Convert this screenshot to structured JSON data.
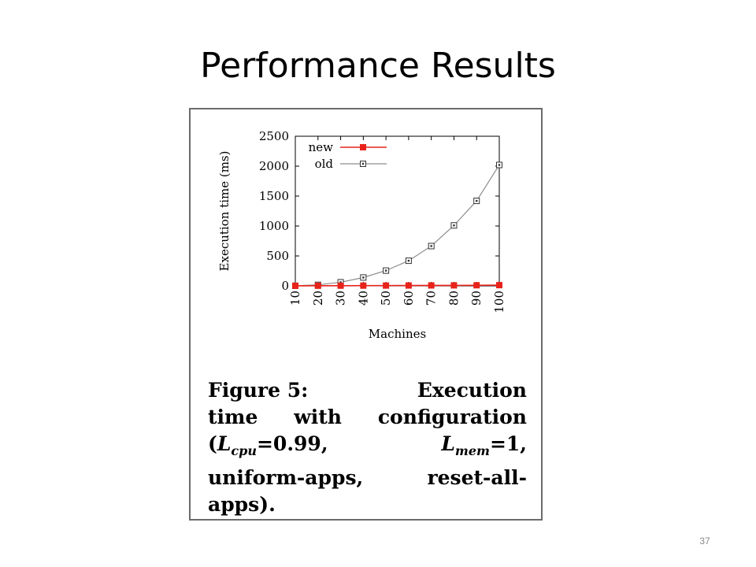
{
  "slide": {
    "title": "Performance Results",
    "number": "37"
  },
  "caption": {
    "figure_label": "Figure",
    "figure_number": "5:",
    "line1_word": "Execution",
    "line2_a": "time",
    "line2_b": "with",
    "line2_c": "configuration",
    "lcpu_open": "(",
    "lcpu_symbol": "L",
    "lcpu_sub": "cpu",
    "lcpu_value": "=0.99,",
    "lmem_symbol": "L",
    "lmem_sub": "mem",
    "lmem_value": "=1,",
    "line4_a": "uniform-apps,",
    "line4_b": "reset-all-",
    "line5": "apps)."
  },
  "chart_data": {
    "type": "line",
    "title": "",
    "xlabel": "Machines",
    "ylabel": "Execution time (ms)",
    "x": [
      10,
      20,
      30,
      40,
      50,
      60,
      70,
      80,
      90,
      100
    ],
    "x_tick_labels": [
      "10",
      "20",
      "30",
      "40",
      "50",
      "60",
      "70",
      "80",
      "90",
      "100"
    ],
    "ylim": [
      0,
      2500
    ],
    "y_ticks": [
      0,
      500,
      1000,
      1500,
      2000,
      2500
    ],
    "y_tick_labels": [
      "0",
      "500",
      "1000",
      "1500",
      "2000",
      "2500"
    ],
    "grid": false,
    "legend_position": "top-left",
    "series": [
      {
        "name": "new",
        "color": "#e8231a",
        "marker": "filled-square",
        "values": [
          1,
          2,
          3,
          4,
          5,
          6,
          7,
          8,
          10,
          12
        ]
      },
      {
        "name": "old",
        "color": "#8c8c8c",
        "marker": "open-square",
        "values": [
          2,
          17,
          60,
          140,
          255,
          420,
          665,
          1010,
          1420,
          2020
        ]
      }
    ]
  }
}
